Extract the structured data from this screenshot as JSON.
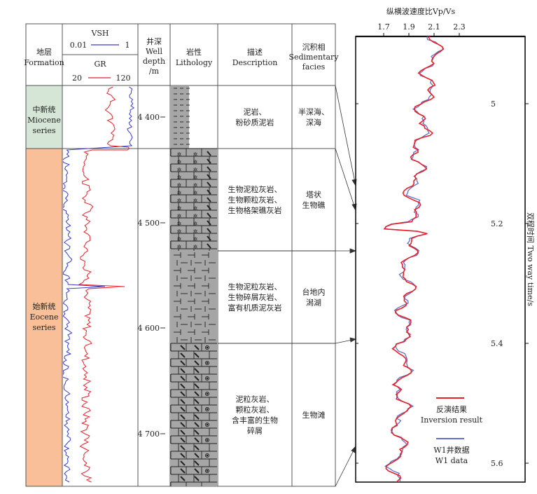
{
  "header": {
    "formation_cn": "地层",
    "formation_en": "Formation",
    "vsh_label": "VSH",
    "vsh_min": "0.01",
    "vsh_max": "1",
    "gr_label": "GR",
    "gr_min": "20",
    "gr_max": "120",
    "depth_cn": "井深",
    "depth_en1": "Well",
    "depth_en2": "depth",
    "depth_en3": "/m",
    "lith_cn": "岩性",
    "lith_en": "Lithology",
    "desc_cn": "描述",
    "desc_en": "Description",
    "facies_cn": "沉积相",
    "facies_en1": "Sedimentary",
    "facies_en2": "facies"
  },
  "formations": [
    {
      "cn": "中新统",
      "en1": "Miocene",
      "en2": "series",
      "color": "#d5e6d6"
    },
    {
      "cn": "始新统",
      "en1": "Eocene",
      "en2": "series",
      "color": "#f8bf98"
    }
  ],
  "depth_ticks": [
    "4 400",
    "4 500",
    "4 600",
    "4 700"
  ],
  "intervals": [
    {
      "desc": [
        "泥岩、",
        "粉砂质泥岩"
      ],
      "facies": [
        "半深海、",
        "深海"
      ]
    },
    {
      "desc": [
        "生物泥粒灰岩、",
        "生物颗粒灰岩、",
        "生物格架礁灰岩"
      ],
      "facies": [
        "塔状",
        "生物礁"
      ]
    },
    {
      "desc": [
        "生物泥粒灰岩、",
        "生物碎屑灰岩、",
        "富有机质泥灰岩"
      ],
      "facies": [
        "台地内",
        "潟湖"
      ]
    },
    {
      "desc": [
        "泥粒灰岩、",
        "颗粒灰岩、",
        "含丰富的生物",
        "碎屑"
      ],
      "facies": [
        "生物滩"
      ]
    }
  ],
  "right_panel": {
    "title": "纵横波速度比Vp/Vs",
    "x_ticks": [
      "1.7",
      "1.9",
      "2.1",
      "2.3"
    ],
    "y_ticks": [
      "5",
      "5.2",
      "5.4",
      "5.6"
    ],
    "y_label": "双程时间 Two way time/s",
    "legend": [
      {
        "cn": "反演结果",
        "en": "Inversion result",
        "color": "#e8202a"
      },
      {
        "cn": "W1井数据",
        "en": "W1 data",
        "color": "#6070c8"
      }
    ]
  },
  "colors": {
    "red": "#e8202a",
    "blue": "#3a3acc",
    "lith_gray": "#a6a6a6"
  }
}
